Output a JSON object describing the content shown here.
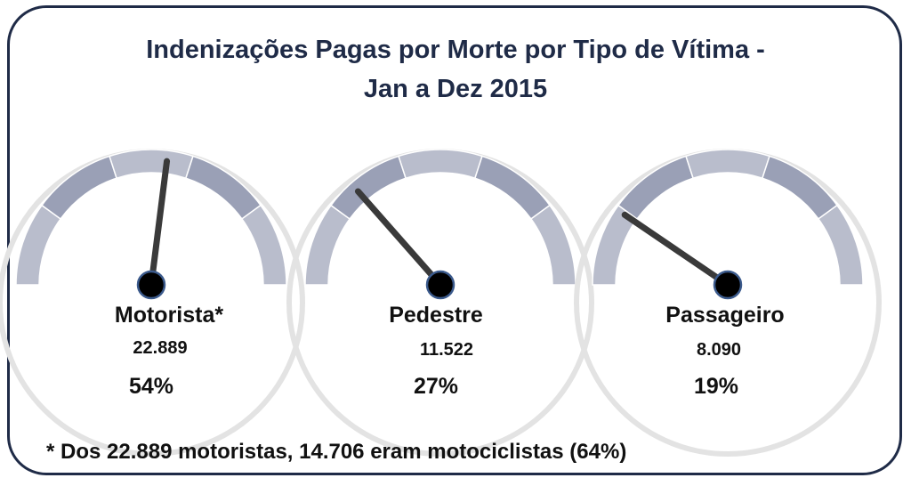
{
  "title_line1": "Indenizações Pagas por Morte por Tipo de Vítima -",
  "title_line2": "Jan a Dez 2015",
  "footnote": "* Dos 22.889 motoristas, 14.706 eram motociclistas (64%)",
  "colors": {
    "frame": "#1f2b47",
    "needle": "#3a3a3a",
    "hub": "#000000",
    "hub_ring": "#3b5a8c"
  },
  "chart_data": {
    "type": "gauge",
    "title": "Indenizações Pagas por Morte por Tipo de Vítima - Jan a Dez 2015",
    "range": [
      0,
      100
    ],
    "series": [
      {
        "name": "Motorista*",
        "value": 22889,
        "value_label": "22.889",
        "percent": 54,
        "percent_label": "54%"
      },
      {
        "name": "Pedestre",
        "value": 11522,
        "value_label": "11.522",
        "percent": 27,
        "percent_label": "27%"
      },
      {
        "name": "Passageiro",
        "value": 8090,
        "value_label": "8.090",
        "percent": 19,
        "percent_label": "19%"
      }
    ]
  }
}
